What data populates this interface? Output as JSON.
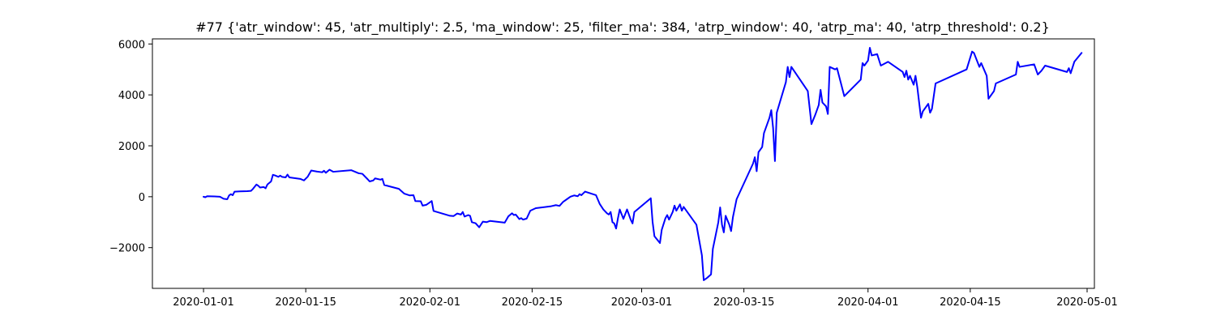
{
  "chart_data": {
    "type": "line",
    "title": "#77 {'atr_window': 45, 'atr_multiply': 2.5, 'ma_window': 25, 'filter_ma': 384, 'atrp_window': 40, 'atrp_ma': 40, 'atrp_threshold': 0.2}",
    "xlabel": "",
    "ylabel": "",
    "x_type": "date",
    "xlim": [
      "2019-12-25",
      "2020-05-02"
    ],
    "ylim": [
      -3600,
      6200
    ],
    "x_ticks": [
      "2020-01-01",
      "2020-01-15",
      "2020-02-01",
      "2020-02-15",
      "2020-03-01",
      "2020-03-15",
      "2020-04-01",
      "2020-04-15",
      "2020-05-01"
    ],
    "y_ticks": [
      -2000,
      0,
      2000,
      4000,
      6000
    ],
    "grid": false,
    "legend": "none",
    "color": "#0000ff",
    "series": [
      {
        "points": [
          [
            "2020-01-01 00:00",
            0
          ],
          [
            "2020-01-01 06:00",
            -20
          ],
          [
            "2020-01-01 12:00",
            20
          ],
          [
            "2020-01-02 12:00",
            10
          ],
          [
            "2020-01-03 06:00",
            0
          ],
          [
            "2020-01-03 18:00",
            -80
          ],
          [
            "2020-01-04 06:00",
            -100
          ],
          [
            "2020-01-04 12:00",
            50
          ],
          [
            "2020-01-04 18:00",
            100
          ],
          [
            "2020-01-05 00:00",
            60
          ],
          [
            "2020-01-05 06:00",
            200
          ],
          [
            "2020-01-06 00:00",
            210
          ],
          [
            "2020-01-07 00:00",
            220
          ],
          [
            "2020-01-07 12:00",
            230
          ],
          [
            "2020-01-07 18:00",
            300
          ],
          [
            "2020-01-08 06:00",
            480
          ],
          [
            "2020-01-08 12:00",
            430
          ],
          [
            "2020-01-08 18:00",
            360
          ],
          [
            "2020-01-09 06:00",
            380
          ],
          [
            "2020-01-09 12:00",
            330
          ],
          [
            "2020-01-09 18:00",
            480
          ],
          [
            "2020-01-10 06:00",
            600
          ],
          [
            "2020-01-10 12:00",
            860
          ],
          [
            "2020-01-10 18:00",
            840
          ],
          [
            "2020-01-11 06:00",
            780
          ],
          [
            "2020-01-11 12:00",
            830
          ],
          [
            "2020-01-11 18:00",
            780
          ],
          [
            "2020-01-12 06:00",
            760
          ],
          [
            "2020-01-12 12:00",
            870
          ],
          [
            "2020-01-12 18:00",
            760
          ],
          [
            "2020-01-14 06:00",
            700
          ],
          [
            "2020-01-14 18:00",
            640
          ],
          [
            "2020-01-15 06:00",
            780
          ],
          [
            "2020-01-15 18:00",
            1030
          ],
          [
            "2020-01-16 12:00",
            990
          ],
          [
            "2020-01-17 06:00",
            960
          ],
          [
            "2020-01-17 12:00",
            1020
          ],
          [
            "2020-01-17 18:00",
            940
          ],
          [
            "2020-01-18 06:00",
            1060
          ],
          [
            "2020-01-18 18:00",
            980
          ],
          [
            "2020-01-21 06:00",
            1040
          ],
          [
            "2020-01-22 06:00",
            920
          ],
          [
            "2020-01-22 18:00",
            900
          ],
          [
            "2020-01-23 12:00",
            680
          ],
          [
            "2020-01-23 18:00",
            600
          ],
          [
            "2020-01-24 06:00",
            640
          ],
          [
            "2020-01-24 12:00",
            720
          ],
          [
            "2020-01-25 06:00",
            670
          ],
          [
            "2020-01-25 12:00",
            700
          ],
          [
            "2020-01-25 18:00",
            460
          ],
          [
            "2020-01-27 18:00",
            310
          ],
          [
            "2020-01-28 12:00",
            120
          ],
          [
            "2020-01-29 06:00",
            50
          ],
          [
            "2020-01-29 18:00",
            60
          ],
          [
            "2020-01-30 00:00",
            -170
          ],
          [
            "2020-01-30 18:00",
            -180
          ],
          [
            "2020-01-31 00:00",
            -350
          ],
          [
            "2020-01-31 12:00",
            -320
          ],
          [
            "2020-02-01 00:00",
            -220
          ],
          [
            "2020-02-01 06:00",
            -170
          ],
          [
            "2020-02-01 12:00",
            -560
          ],
          [
            "2020-02-03 18:00",
            -750
          ],
          [
            "2020-02-04 06:00",
            -760
          ],
          [
            "2020-02-04 18:00",
            -660
          ],
          [
            "2020-02-05 06:00",
            -700
          ],
          [
            "2020-02-05 12:00",
            -600
          ],
          [
            "2020-02-05 18:00",
            -780
          ],
          [
            "2020-02-06 06:00",
            -720
          ],
          [
            "2020-02-06 12:00",
            -750
          ],
          [
            "2020-02-06 18:00",
            -1000
          ],
          [
            "2020-02-07 06:00",
            -1040
          ],
          [
            "2020-02-07 18:00",
            -1200
          ],
          [
            "2020-02-08 06:00",
            -980
          ],
          [
            "2020-02-08 18:00",
            -1000
          ],
          [
            "2020-02-09 06:00",
            -950
          ],
          [
            "2020-02-11 06:00",
            -1020
          ],
          [
            "2020-02-11 18:00",
            -770
          ],
          [
            "2020-02-12 06:00",
            -650
          ],
          [
            "2020-02-12 12:00",
            -720
          ],
          [
            "2020-02-12 18:00",
            -700
          ],
          [
            "2020-02-13 06:00",
            -880
          ],
          [
            "2020-02-13 12:00",
            -840
          ],
          [
            "2020-02-13 18:00",
            -900
          ],
          [
            "2020-02-14 06:00",
            -860
          ],
          [
            "2020-02-14 18:00",
            -550
          ],
          [
            "2020-02-15 12:00",
            -450
          ],
          [
            "2020-02-17 12:00",
            -380
          ],
          [
            "2020-02-18 06:00",
            -330
          ],
          [
            "2020-02-18 18:00",
            -360
          ],
          [
            "2020-02-19 06:00",
            -200
          ],
          [
            "2020-02-19 18:00",
            -100
          ],
          [
            "2020-02-20 06:00",
            0
          ],
          [
            "2020-02-20 18:00",
            50
          ],
          [
            "2020-02-21 06:00",
            20
          ],
          [
            "2020-02-21 12:00",
            100
          ],
          [
            "2020-02-21 18:00",
            60
          ],
          [
            "2020-02-22 06:00",
            200
          ],
          [
            "2020-02-23 18:00",
            60
          ],
          [
            "2020-02-24 06:00",
            -280
          ],
          [
            "2020-02-24 18:00",
            -500
          ],
          [
            "2020-02-25 06:00",
            -650
          ],
          [
            "2020-02-25 12:00",
            -700
          ],
          [
            "2020-02-25 18:00",
            -600
          ],
          [
            "2020-02-26 00:00",
            -1000
          ],
          [
            "2020-02-26 06:00",
            -1050
          ],
          [
            "2020-02-26 12:00",
            -1250
          ],
          [
            "2020-02-26 18:00",
            -850
          ],
          [
            "2020-02-27 00:00",
            -500
          ],
          [
            "2020-02-27 12:00",
            -870
          ],
          [
            "2020-02-28 00:00",
            -500
          ],
          [
            "2020-02-28 12:00",
            -900
          ],
          [
            "2020-02-28 18:00",
            -1050
          ],
          [
            "2020-02-29 00:00",
            -600
          ],
          [
            "2020-03-02 06:00",
            -60
          ],
          [
            "2020-03-02 12:00",
            -1000
          ],
          [
            "2020-03-02 18:00",
            -1550
          ],
          [
            "2020-03-03 12:00",
            -1820
          ],
          [
            "2020-03-03 18:00",
            -1300
          ],
          [
            "2020-03-04 06:00",
            -850
          ],
          [
            "2020-03-04 12:00",
            -720
          ],
          [
            "2020-03-04 18:00",
            -900
          ],
          [
            "2020-03-05 06:00",
            -600
          ],
          [
            "2020-03-05 12:00",
            -350
          ],
          [
            "2020-03-05 18:00",
            -550
          ],
          [
            "2020-03-06 06:00",
            -300
          ],
          [
            "2020-03-06 12:00",
            -550
          ],
          [
            "2020-03-06 18:00",
            -400
          ],
          [
            "2020-03-08 12:00",
            -1100
          ],
          [
            "2020-03-09 06:00",
            -2300
          ],
          [
            "2020-03-09 12:00",
            -3280
          ],
          [
            "2020-03-10 00:00",
            -3180
          ],
          [
            "2020-03-10 12:00",
            -3050
          ],
          [
            "2020-03-10 18:00",
            -2050
          ],
          [
            "2020-03-11 12:00",
            -1000
          ],
          [
            "2020-03-11 18:00",
            -420
          ],
          [
            "2020-03-12 00:00",
            -1100
          ],
          [
            "2020-03-12 06:00",
            -1400
          ],
          [
            "2020-03-12 12:00",
            -750
          ],
          [
            "2020-03-13 00:00",
            -1100
          ],
          [
            "2020-03-13 06:00",
            -1350
          ],
          [
            "2020-03-13 12:00",
            -800
          ],
          [
            "2020-03-14 00:00",
            -100
          ],
          [
            "2020-03-16 06:00",
            1300
          ],
          [
            "2020-03-16 12:00",
            1550
          ],
          [
            "2020-03-16 18:00",
            1000
          ],
          [
            "2020-03-17 00:00",
            1750
          ],
          [
            "2020-03-17 12:00",
            1950
          ],
          [
            "2020-03-17 18:00",
            2500
          ],
          [
            "2020-03-18 12:00",
            3100
          ],
          [
            "2020-03-18 18:00",
            3400
          ],
          [
            "2020-03-19 00:00",
            2700
          ],
          [
            "2020-03-19 06:00",
            1400
          ],
          [
            "2020-03-19 12:00",
            3300
          ],
          [
            "2020-03-20 18:00",
            4500
          ],
          [
            "2020-03-21 00:00",
            5100
          ],
          [
            "2020-03-21 06:00",
            4700
          ],
          [
            "2020-03-21 12:00",
            5100
          ],
          [
            "2020-03-23 18:00",
            4150
          ],
          [
            "2020-03-24 06:00",
            2850
          ],
          [
            "2020-03-24 18:00",
            3200
          ],
          [
            "2020-03-25 06:00",
            3600
          ],
          [
            "2020-03-25 12:00",
            4200
          ],
          [
            "2020-03-25 18:00",
            3700
          ],
          [
            "2020-03-26 06:00",
            3550
          ],
          [
            "2020-03-26 12:00",
            3250
          ],
          [
            "2020-03-26 18:00",
            5100
          ],
          [
            "2020-03-27 12:00",
            5000
          ],
          [
            "2020-03-27 18:00",
            5050
          ],
          [
            "2020-03-28 06:00",
            4500
          ],
          [
            "2020-03-28 18:00",
            3950
          ],
          [
            "2020-03-31 00:00",
            4600
          ],
          [
            "2020-03-31 06:00",
            5250
          ],
          [
            "2020-03-31 12:00",
            5150
          ],
          [
            "2020-04-01 00:00",
            5350
          ],
          [
            "2020-04-01 06:00",
            5850
          ],
          [
            "2020-04-01 12:00",
            5550
          ],
          [
            "2020-04-02 06:00",
            5600
          ],
          [
            "2020-04-02 18:00",
            5150
          ],
          [
            "2020-04-03 18:00",
            5300
          ],
          [
            "2020-04-05 18:00",
            4900
          ],
          [
            "2020-04-06 00:00",
            4700
          ],
          [
            "2020-04-06 06:00",
            4950
          ],
          [
            "2020-04-06 12:00",
            4600
          ],
          [
            "2020-04-06 18:00",
            4750
          ],
          [
            "2020-04-07 06:00",
            4400
          ],
          [
            "2020-04-07 12:00",
            4750
          ],
          [
            "2020-04-07 18:00",
            4300
          ],
          [
            "2020-04-08 06:00",
            3100
          ],
          [
            "2020-04-08 12:00",
            3350
          ],
          [
            "2020-04-09 06:00",
            3650
          ],
          [
            "2020-04-09 12:00",
            3300
          ],
          [
            "2020-04-09 18:00",
            3450
          ],
          [
            "2020-04-10 06:00",
            4450
          ],
          [
            "2020-04-14 12:00",
            5000
          ],
          [
            "2020-04-15 06:00",
            5700
          ],
          [
            "2020-04-15 12:00",
            5650
          ],
          [
            "2020-04-16 06:00",
            5100
          ],
          [
            "2020-04-16 12:00",
            5250
          ],
          [
            "2020-04-17 06:00",
            4750
          ],
          [
            "2020-04-17 12:00",
            3850
          ],
          [
            "2020-04-18 06:00",
            4150
          ],
          [
            "2020-04-18 12:00",
            4450
          ],
          [
            "2020-04-21 06:00",
            4800
          ],
          [
            "2020-04-21 12:00",
            5300
          ],
          [
            "2020-04-21 18:00",
            5100
          ],
          [
            "2020-04-23 18:00",
            5200
          ],
          [
            "2020-04-24 06:00",
            4800
          ],
          [
            "2020-04-24 18:00",
            4950
          ],
          [
            "2020-04-25 06:00",
            5150
          ],
          [
            "2020-04-28 06:00",
            4900
          ],
          [
            "2020-04-28 12:00",
            5050
          ],
          [
            "2020-04-28 18:00",
            4850
          ],
          [
            "2020-04-29 06:00",
            5300
          ],
          [
            "2020-04-30 06:00",
            5650
          ]
        ]
      }
    ]
  }
}
